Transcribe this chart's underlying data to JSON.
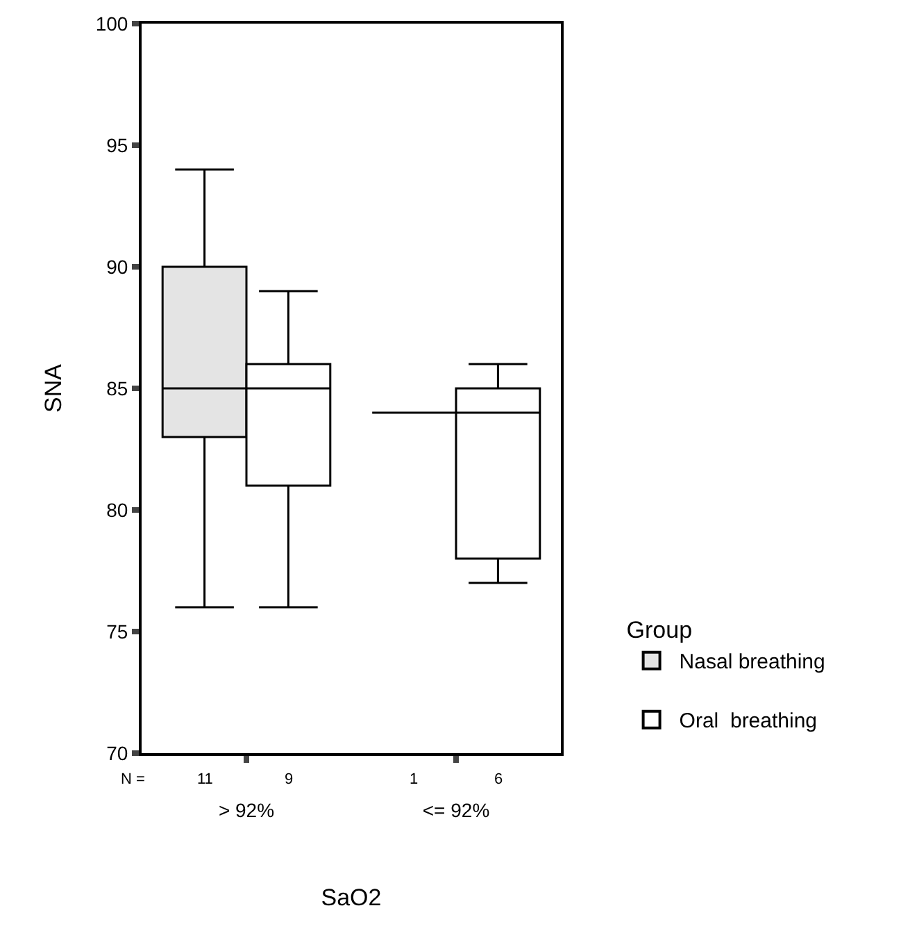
{
  "chart_data": {
    "type": "box",
    "xlabel": "SaO2",
    "ylabel": "SNA",
    "legend_title": "Group",
    "legend": "right",
    "grid": false,
    "categories": [
      "> 92%",
      "<= 92%"
    ],
    "ylim": [
      70,
      100
    ],
    "yticks": [
      70,
      75,
      80,
      85,
      90,
      95,
      100
    ],
    "series": [
      {
        "name": "Nasal breathing",
        "colors": [
          "#e4e4e4",
          "#000000"
        ],
        "boxes": [
          {
            "low": 76,
            "q1": 83,
            "median": 85,
            "q3": 90,
            "high": 94
          },
          {
            "low": 84,
            "q1": 84,
            "median": 84,
            "q3": 84,
            "high": 84
          }
        ]
      },
      {
        "name": "Oral  breathing",
        "color": "#ffffff",
        "boxes": [
          {
            "low": 76,
            "q1": 81,
            "median": 85,
            "q3": 86,
            "high": 89
          },
          {
            "low": 77,
            "q1": 78,
            "median": 84,
            "q3": 85,
            "high": 86
          }
        ]
      }
    ],
    "annotations": [
      "N =",
      "11",
      "9",
      "1",
      "6"
    ]
  }
}
